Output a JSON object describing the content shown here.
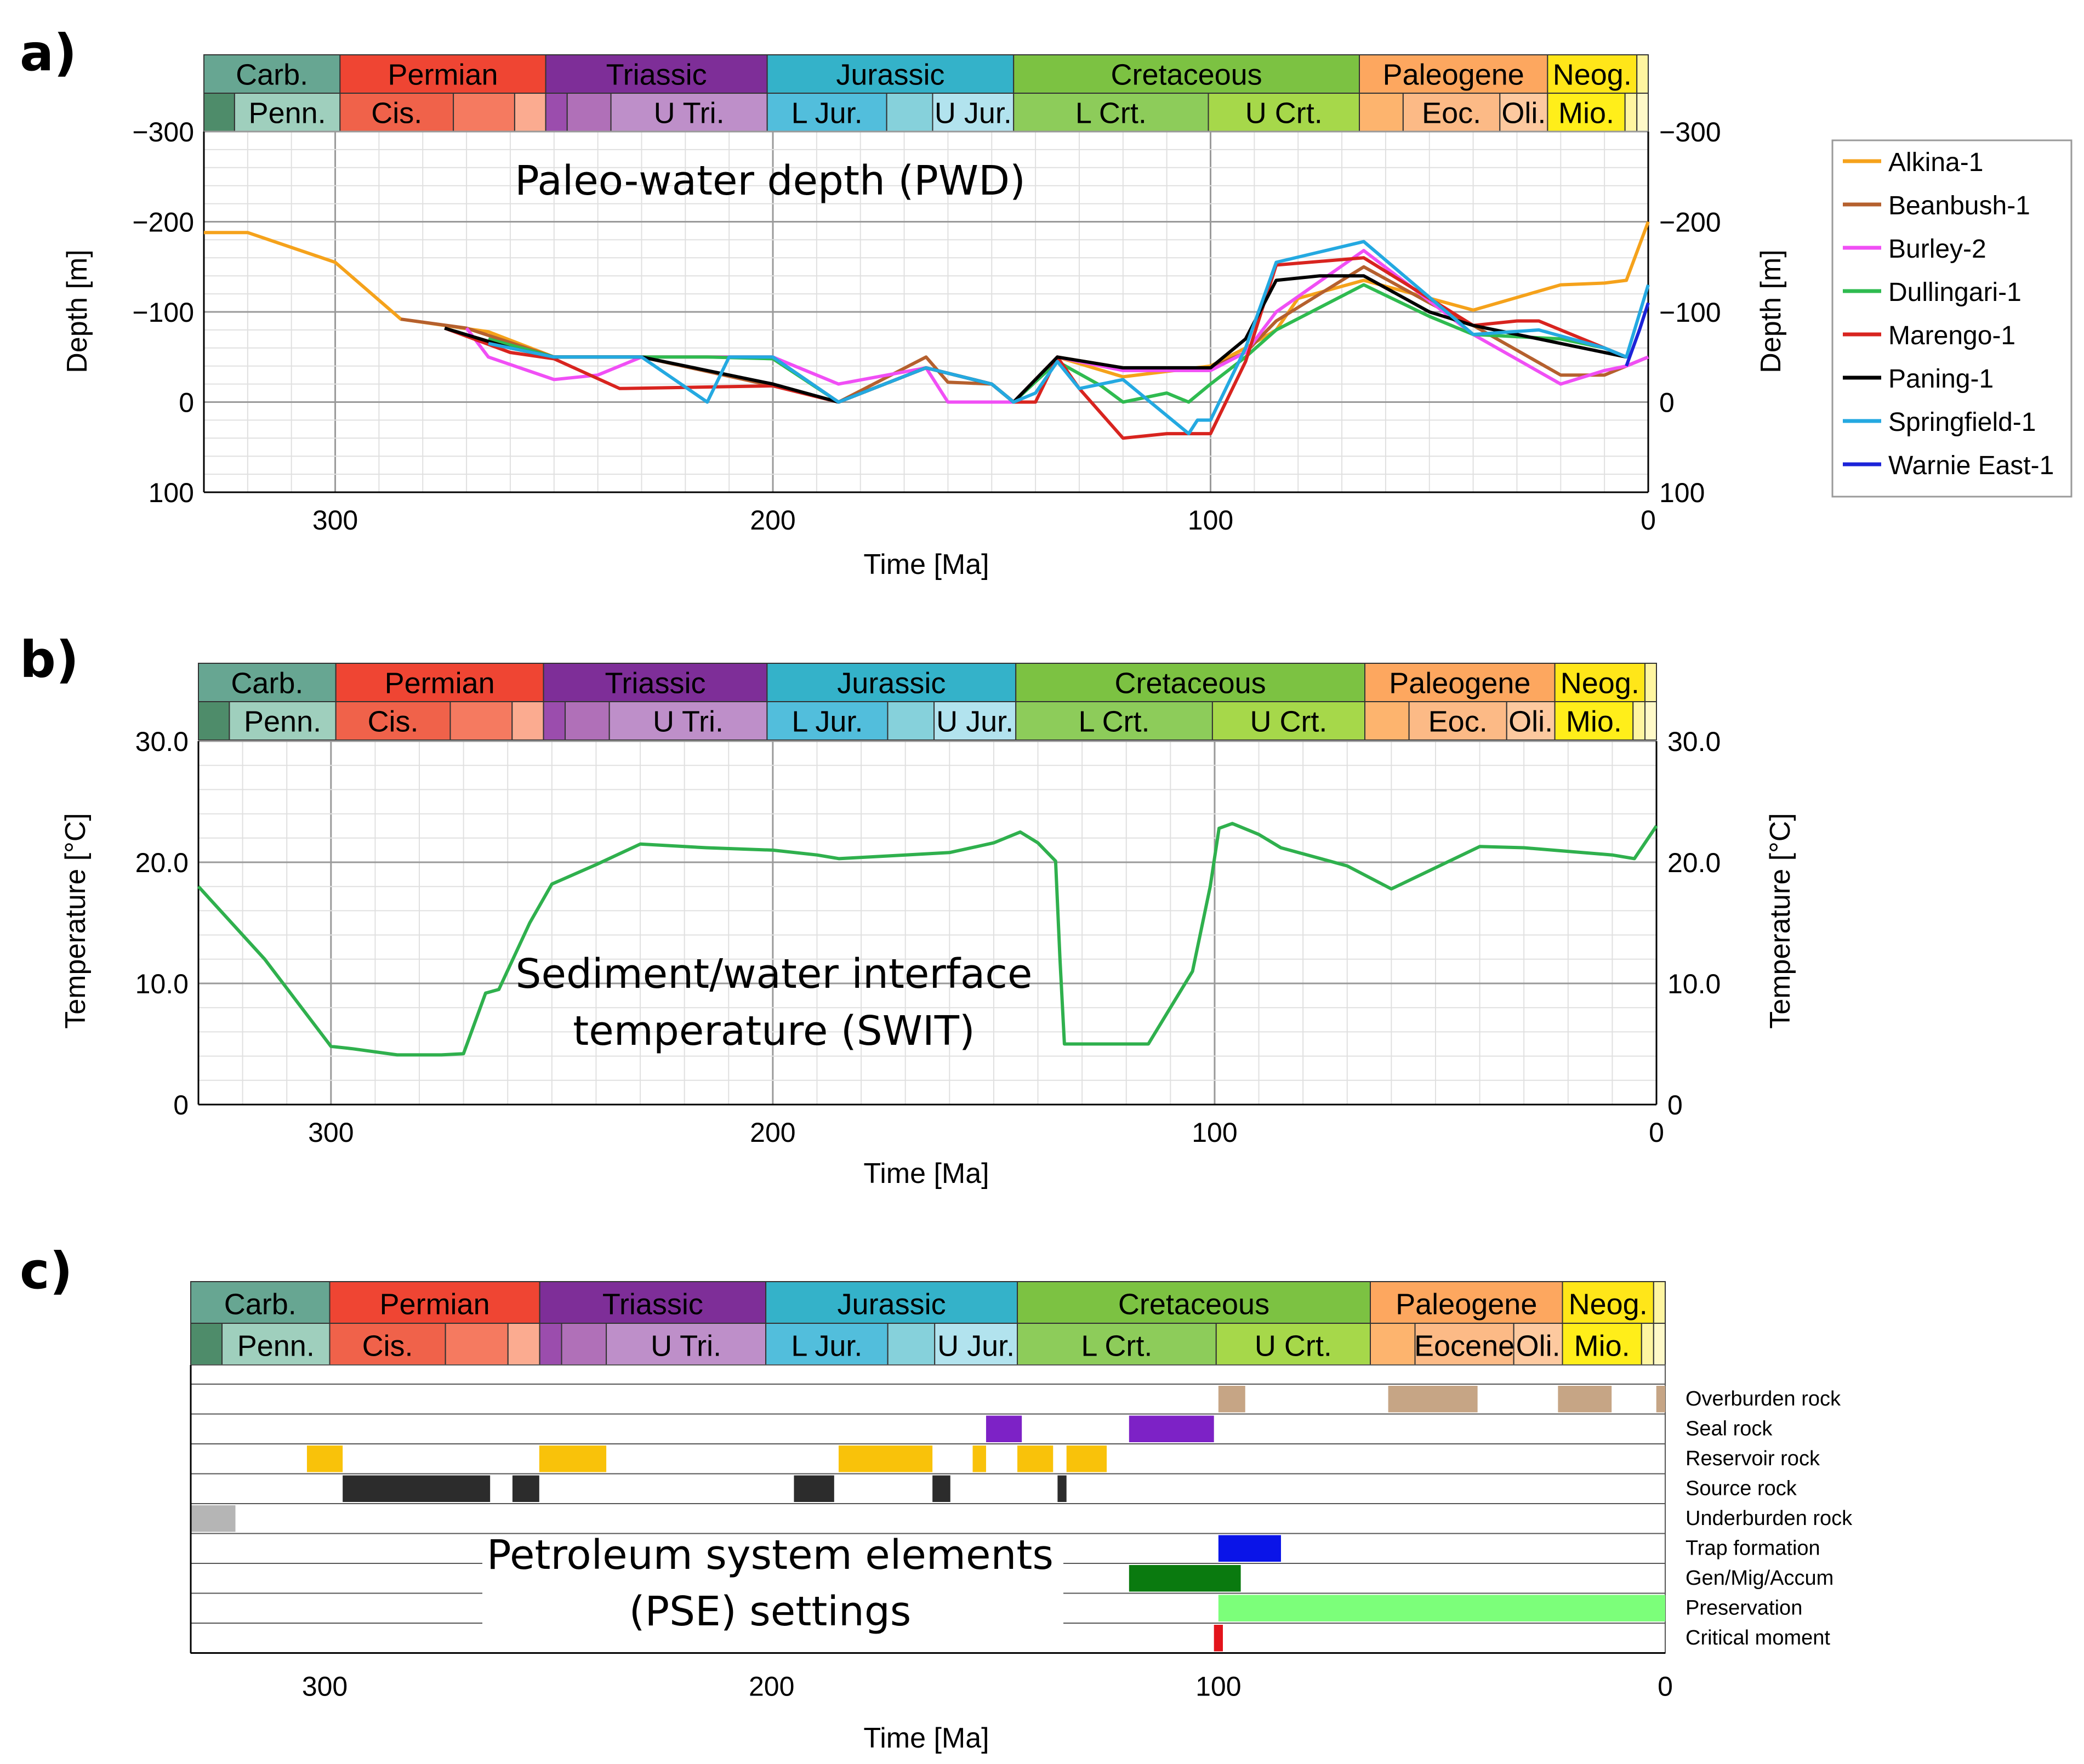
{
  "figure": {
    "panel_labels": [
      "a)",
      "b)",
      "c)"
    ],
    "colors": {
      "carb": "#67a692",
      "penn": "#9fcfbd",
      "carb_small": "#4e8c6a",
      "permian": "#ef4533",
      "cis": "#f0624a",
      "perm_mid": "#f57a60",
      "perm_light": "#fbab90",
      "triassic": "#7e2e98",
      "tri_a": "#9b4dad",
      "tri_b": "#b070b8",
      "u_tri": "#be8fc9",
      "jurassic": "#34b2c9",
      "l_jur": "#52bedc",
      "m_jur": "#86d1db",
      "u_jur": "#b2e3ee",
      "cretaceous": "#7cc242",
      "l_crt": "#8dcc5a",
      "u_crt": "#a6d84a",
      "paleogene": "#fda75f",
      "paleo_a": "#fdb46e",
      "eoc": "#fcba86",
      "oli": "#fdc99f",
      "neogene": "#ffe619",
      "mio": "#ffee1a",
      "plio": "#fff5a0"
    },
    "timescale": {
      "periods": [
        "Carb.",
        "Permian",
        "Triassic",
        "Jurassic",
        "Cretaceous",
        "Paleogene",
        "Neog."
      ],
      "epochs_ab": [
        "Penn.",
        "Cis.",
        "U Tri.",
        "L Jur.",
        "U Jur.",
        "L Crt.",
        "U Crt.",
        "Eoc.",
        "Oli.",
        "Mio."
      ],
      "epochs_c": [
        "Penn.",
        "Cis.",
        "U Tri.",
        "L Jur.",
        "U Jur.",
        "L Crt.",
        "U Crt.",
        "Eocene",
        "Oli.",
        "Mio."
      ]
    }
  },
  "chart_data": [
    {
      "type": "line",
      "title": "Paleo-water depth (PWD)",
      "xlabel": "Time [Ma]",
      "ylabel": "Depth [m]",
      "xlim": [
        330,
        0
      ],
      "ylim": [
        100,
        -300
      ],
      "xticks": [
        "300",
        "200",
        "100",
        "0"
      ],
      "yticks": [
        "−300",
        "−200",
        "−100",
        "0",
        "100"
      ],
      "grid": true,
      "legend_position": "right",
      "series": [
        {
          "name": "Alkina-1",
          "color": "#f5a21b",
          "x": [
            330,
            320,
            300,
            285,
            265,
            250,
            200,
            185,
            165,
            150,
            145,
            135,
            120,
            100,
            92,
            85,
            80,
            65,
            40,
            20,
            10,
            5,
            0
          ],
          "y": [
            -188,
            -188,
            -155,
            -92,
            -78,
            -50,
            -50,
            0,
            -38,
            -20,
            0,
            -50,
            -28,
            -40,
            -60,
            -80,
            -115,
            -135,
            -102,
            -130,
            -132,
            -135,
            -200
          ]
        },
        {
          "name": "Beanbush-1",
          "color": "#b5602e",
          "x": [
            285,
            270,
            250,
            230,
            200,
            185,
            165,
            160,
            150,
            145,
            135,
            120,
            100,
            92,
            85,
            65,
            50,
            40,
            20,
            10,
            5,
            0
          ],
          "y": [
            -92,
            -82,
            -50,
            -50,
            -18,
            0,
            -50,
            -22,
            -20,
            0,
            -50,
            -38,
            -38,
            -55,
            -90,
            -150,
            -110,
            -85,
            -30,
            -30,
            -40,
            -50
          ]
        },
        {
          "name": "Burley-2",
          "color": "#f04ff5",
          "x": [
            270,
            265,
            250,
            240,
            230,
            200,
            185,
            165,
            160,
            150,
            145,
            135,
            120,
            100,
            92,
            85,
            65,
            40,
            20,
            10,
            5,
            0
          ],
          "y": [
            -82,
            -50,
            -25,
            -30,
            -50,
            -50,
            -20,
            -38,
            0,
            0,
            0,
            -50,
            -35,
            -35,
            -55,
            -100,
            -168,
            -75,
            -20,
            -35,
            -40,
            -50
          ]
        },
        {
          "name": "Dullingari-1",
          "color": "#2fbb50",
          "x": [
            265,
            250,
            230,
            215,
            200,
            185,
            165,
            150,
            145,
            135,
            125,
            120,
            110,
            105,
            100,
            92,
            85,
            65,
            50,
            40,
            20,
            10,
            5
          ],
          "y": [
            -70,
            -50,
            -50,
            -50,
            -48,
            0,
            -38,
            -20,
            0,
            -45,
            -18,
            0,
            -10,
            0,
            -20,
            -50,
            -80,
            -130,
            -95,
            -75,
            -70,
            -60,
            -50
          ]
        },
        {
          "name": "Marengo-1",
          "color": "#d8241f",
          "x": [
            275,
            260,
            250,
            235,
            200,
            185,
            165,
            150,
            145,
            140,
            135,
            130,
            120,
            110,
            100,
            92,
            85,
            65,
            40,
            30,
            25,
            10,
            5
          ],
          "y": [
            -82,
            -55,
            -48,
            -15,
            -18,
            0,
            -38,
            -20,
            0,
            0,
            -50,
            -15,
            40,
            35,
            35,
            -45,
            -152,
            -160,
            -85,
            -90,
            -90,
            -60,
            -50
          ]
        },
        {
          "name": "Paning-1",
          "color": "#000000",
          "x": [
            275,
            260,
            250,
            230,
            200,
            185,
            165,
            150,
            145,
            135,
            120,
            100,
            92,
            85,
            75,
            65,
            50,
            40,
            20,
            10,
            5
          ],
          "y": [
            -82,
            -60,
            -50,
            -50,
            -20,
            0,
            -38,
            -20,
            0,
            -50,
            -38,
            -38,
            -70,
            -135,
            -140,
            -140,
            -100,
            -85,
            -65,
            -55,
            -50
          ]
        },
        {
          "name": "Springfield-1",
          "color": "#24a9e1",
          "x": [
            265,
            250,
            230,
            215,
            210,
            200,
            185,
            165,
            150,
            145,
            140,
            135,
            130,
            120,
            105,
            103,
            100,
            92,
            85,
            65,
            40,
            25,
            10,
            5,
            0
          ],
          "y": [
            -65,
            -50,
            -50,
            0,
            -50,
            -50,
            0,
            -38,
            -20,
            0,
            -10,
            -45,
            -15,
            -25,
            35,
            20,
            20,
            -60,
            -155,
            -178,
            -75,
            -80,
            -60,
            -50,
            -130
          ]
        },
        {
          "name": "Warnie East-1",
          "color": "#1c23d8",
          "x": [
            5,
            2,
            0
          ],
          "y": [
            -40,
            -80,
            -110
          ]
        }
      ]
    },
    {
      "type": "line",
      "title": "Sediment/water interface temperature (SWIT)",
      "xlabel": "Time [Ma]",
      "ylabel": "Temperature [°C]",
      "xlim": [
        330,
        0
      ],
      "ylim": [
        0,
        30
      ],
      "xticks": [
        "300",
        "200",
        "100",
        "0"
      ],
      "yticks": [
        "0",
        "10.0",
        "20.0",
        "30.0"
      ],
      "grid": true,
      "series": [
        {
          "color": "#2fb04d",
          "x": [
            330,
            315,
            300,
            295,
            285,
            275,
            270,
            265,
            262,
            255,
            250,
            240,
            230,
            215,
            200,
            190,
            185,
            170,
            160,
            150,
            144,
            140,
            136,
            135,
            134,
            125,
            121,
            115,
            110,
            105,
            101,
            99,
            96,
            90,
            85,
            70,
            60,
            40,
            30,
            20,
            10,
            5,
            0
          ],
          "y": [
            18,
            12,
            4.8,
            4.6,
            4.1,
            4.1,
            4.2,
            9.2,
            9.5,
            15,
            18.2,
            19.8,
            21.5,
            21.2,
            21.0,
            20.6,
            20.3,
            20.6,
            20.8,
            21.6,
            22.5,
            21.6,
            20.1,
            12,
            5,
            5,
            5,
            5,
            8,
            11,
            18,
            22.8,
            23.2,
            22.3,
            21.2,
            19.7,
            17.8,
            21.3,
            21.2,
            20.9,
            20.6,
            20.3,
            23.0
          ]
        }
      ]
    },
    {
      "type": "bar",
      "title": "Petroleum system elements (PSE) settings",
      "xlabel": "Time [Ma]",
      "xlim": [
        330,
        0
      ],
      "xticks": [
        "300",
        "200",
        "100",
        "0"
      ],
      "rows": [
        {
          "label": "Overburden rock",
          "color": "#c6a585",
          "intervals": [
            [
              100,
              94
            ],
            [
              62,
              42
            ],
            [
              24,
              12
            ],
            [
              2,
              0
            ]
          ]
        },
        {
          "label": "Seal rock",
          "color": "#7d22c6",
          "intervals": [
            [
              152,
              144
            ],
            [
              120,
              101
            ]
          ]
        },
        {
          "label": "Reservoir rock",
          "color": "#f9c20a",
          "intervals": [
            [
              304,
              296
            ],
            [
              252,
              237
            ],
            [
              185,
              164
            ],
            [
              155,
              152
            ],
            [
              145,
              137
            ],
            [
              134,
              125
            ]
          ]
        },
        {
          "label": "Source rock",
          "color": "#2c2c2c",
          "intervals": [
            [
              296,
              263
            ],
            [
              258,
              252
            ],
            [
              195,
              186
            ],
            [
              164,
              160
            ],
            [
              136,
              134
            ]
          ]
        },
        {
          "label": "Underburden rock",
          "color": "#b5b5b5",
          "intervals": [
            [
              330,
              320
            ]
          ]
        },
        {
          "label": "Trap formation",
          "color": "#0a14e8",
          "intervals": [
            [
              100,
              86
            ]
          ]
        },
        {
          "label": "Gen/Mig/Accum",
          "color": "#0a7a0f",
          "intervals": [
            [
              120,
              95
            ]
          ]
        },
        {
          "label": "Preservation",
          "color": "#7cff7a",
          "intervals": [
            [
              100,
              0
            ]
          ]
        },
        {
          "label": "Critical moment",
          "color": "#e3141b",
          "intervals": [
            [
              101,
              99
            ]
          ]
        }
      ]
    }
  ]
}
